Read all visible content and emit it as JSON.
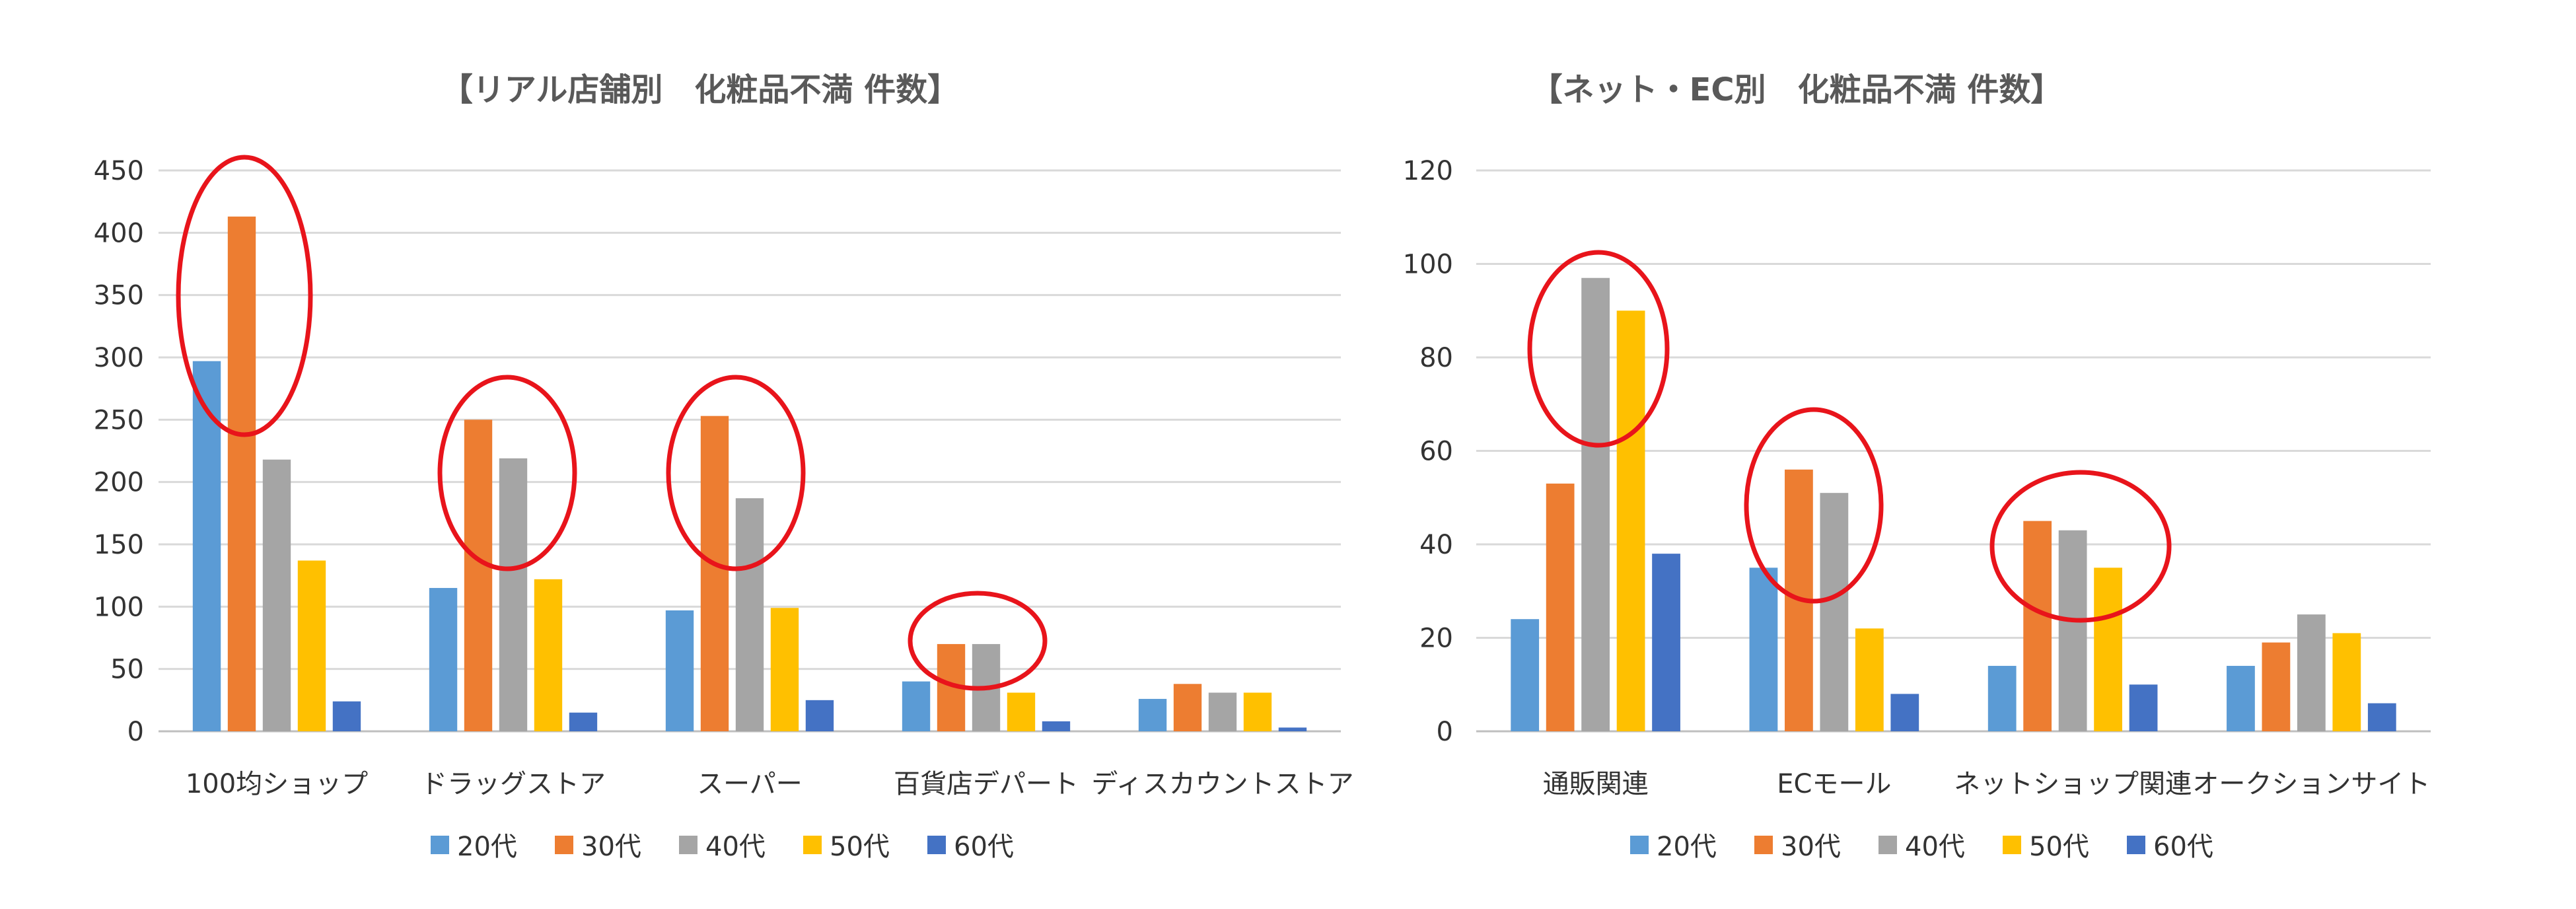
{
  "chart_data": [
    {
      "type": "bar",
      "title": "【リアル店舗別　化粧品不満 件数】",
      "categories": [
        "100均ショップ",
        "ドラッグストア",
        "スーパー",
        "百貨店デパート",
        "ディスカウントストア"
      ],
      "series": [
        {
          "name": "20代",
          "values": [
            297,
            115,
            97,
            40,
            26
          ]
        },
        {
          "name": "30代",
          "values": [
            413,
            250,
            253,
            70,
            38
          ]
        },
        {
          "name": "40代",
          "values": [
            218,
            219,
            187,
            70,
            31
          ]
        },
        {
          "name": "50代",
          "values": [
            137,
            122,
            99,
            31,
            31
          ]
        },
        {
          "name": "60代",
          "values": [
            24,
            15,
            25,
            8,
            3
          ]
        }
      ],
      "ylim": [
        0,
        450
      ],
      "yticks": [
        0,
        50,
        100,
        150,
        200,
        250,
        300,
        350,
        400,
        450
      ],
      "highlighted_groups": [
        0,
        1,
        2,
        3
      ],
      "legend": "bottom",
      "grid": true
    },
    {
      "type": "bar",
      "title": "【ネット・EC別　化粧品不満 件数】",
      "categories": [
        "通販関連",
        "ECモール",
        "ネットショップ関連",
        "オークションサイト"
      ],
      "series": [
        {
          "name": "20代",
          "values": [
            24,
            35,
            14,
            14
          ]
        },
        {
          "name": "30代",
          "values": [
            53,
            56,
            45,
            19
          ]
        },
        {
          "name": "40代",
          "values": [
            97,
            51,
            43,
            25
          ]
        },
        {
          "name": "50代",
          "values": [
            90,
            22,
            35,
            21
          ]
        },
        {
          "name": "60代",
          "values": [
            38,
            8,
            10,
            6
          ]
        }
      ],
      "ylim": [
        0,
        120
      ],
      "yticks": [
        0,
        20,
        40,
        60,
        80,
        100,
        120
      ],
      "highlighted_groups": [
        0,
        1,
        2
      ],
      "legend": "bottom",
      "grid": true
    }
  ],
  "colors": [
    "#5b9bd5",
    "#ed7d31",
    "#a5a5a5",
    "#ffc000",
    "#4472c4"
  ],
  "highlight_color": "#e8141b"
}
